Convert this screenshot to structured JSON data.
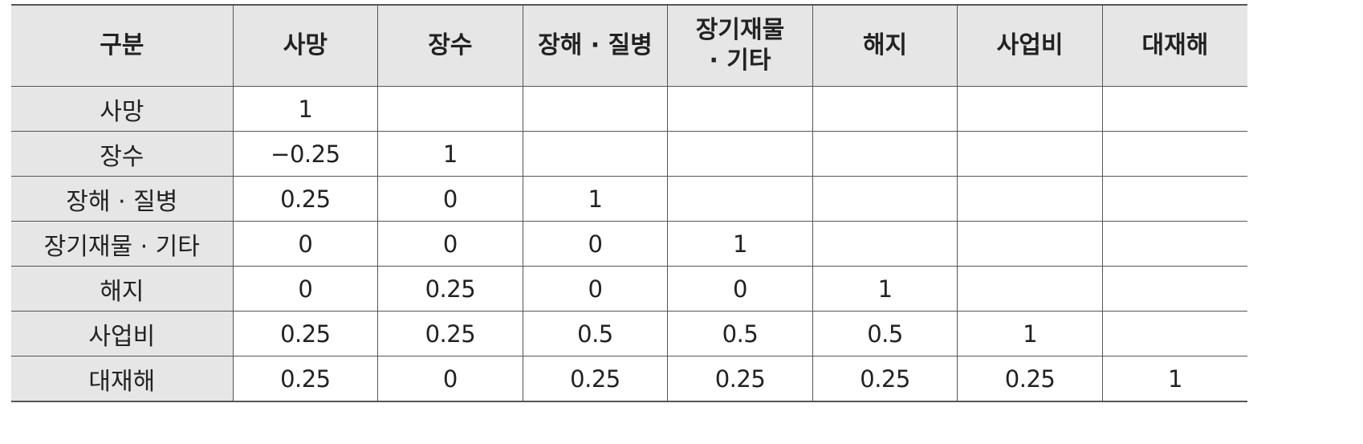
{
  "table": {
    "header": [
      "구분",
      "사망",
      "장수",
      "장해 · 질병",
      "장기재물\n· 기타",
      "해지",
      "사업비",
      "대재해"
    ],
    "rows": [
      {
        "label": "사망",
        "cells": [
          "1",
          "",
          "",
          "",
          "",
          "",
          ""
        ]
      },
      {
        "label": "장수",
        "cells": [
          "−0.25",
          "1",
          "",
          "",
          "",
          "",
          ""
        ]
      },
      {
        "label": "장해 · 질병",
        "cells": [
          "0.25",
          "0",
          "1",
          "",
          "",
          "",
          ""
        ]
      },
      {
        "label": "장기재물 · 기타",
        "cells": [
          "0",
          "0",
          "0",
          "1",
          "",
          "",
          ""
        ]
      },
      {
        "label": "해지",
        "cells": [
          "0",
          "0.25",
          "0",
          "0",
          "1",
          "",
          ""
        ]
      },
      {
        "label": "사업비",
        "cells": [
          "0.25",
          "0.25",
          "0.5",
          "0.5",
          "0.5",
          "1",
          ""
        ]
      },
      {
        "label": "대재해",
        "cells": [
          "0.25",
          "0",
          "0.25",
          "0.25",
          "0.25",
          "0.25",
          "1"
        ]
      }
    ]
  }
}
